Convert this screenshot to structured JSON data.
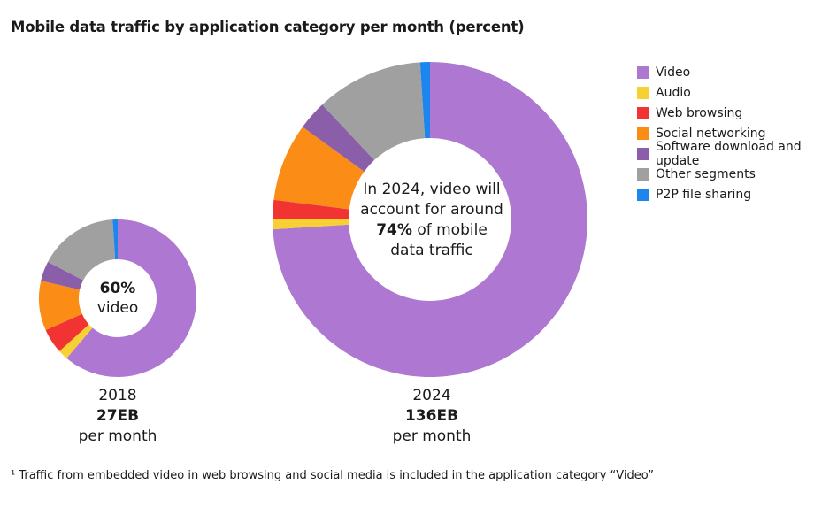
{
  "title": "Mobile data traffic by application category per month (percent)",
  "legend": [
    {
      "label": "Video",
      "color": "#ae78d2"
    },
    {
      "label": "Audio",
      "color": "#f7d034"
    },
    {
      "label": "Web browsing",
      "color": "#f23333"
    },
    {
      "label": "Social networking",
      "color": "#fb8c16"
    },
    {
      "label": "Software download and update",
      "color": "#8a5ea8"
    },
    {
      "label": "Other segments",
      "color": "#a0a0a0"
    },
    {
      "label": "P2P file sharing",
      "color": "#1c86ee"
    }
  ],
  "chart_data": [
    {
      "type": "pie",
      "year": "2018",
      "total": "27EB",
      "total_suffix": "per month",
      "categories": [
        "Video",
        "Audio",
        "Web browsing",
        "Social networking",
        "Software download and update",
        "Other segments",
        "P2P file sharing"
      ],
      "values": [
        60,
        2,
        5,
        10,
        4,
        16,
        1
      ],
      "center_value": "60%",
      "center_label": "video"
    },
    {
      "type": "pie",
      "year": "2024",
      "total": "136EB",
      "total_suffix": "per month",
      "categories": [
        "Video",
        "Audio",
        "Web browsing",
        "Social networking",
        "Software download and update",
        "Other segments",
        "P2P file sharing"
      ],
      "values": [
        74,
        1,
        2,
        8,
        3,
        11,
        1
      ],
      "center_text_line1": "In 2024, video will",
      "center_text_line2": "account for around",
      "center_text_bold": "74%",
      "center_text_line3_rest": " of mobile",
      "center_text_line4": "data traffic"
    }
  ],
  "footnote": "¹ Traffic from embedded video in web browsing and social media is included in the application category “Video”"
}
